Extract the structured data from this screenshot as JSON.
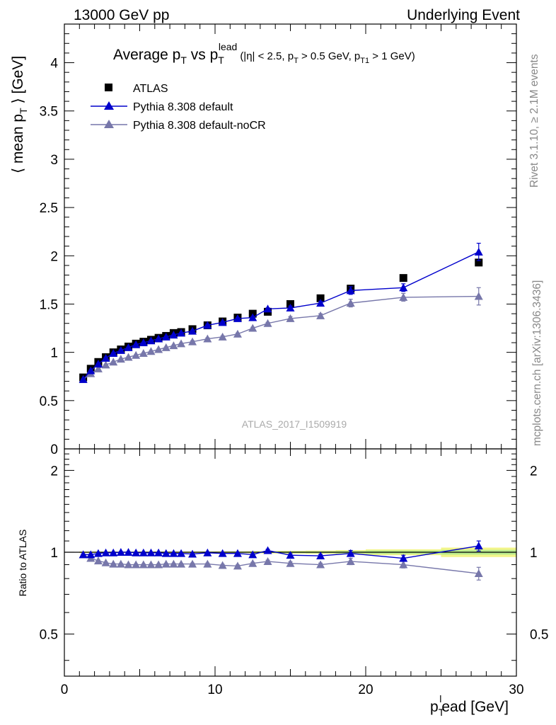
{
  "header": {
    "left": "13000 GeV pp",
    "right": "Underlying Event"
  },
  "side": {
    "rivet": "Rivet 3.1.10, ≥ 2.1M events",
    "mcplots": "mcplots.cern.ch [arXiv:1306.3436]"
  },
  "title": {
    "main": "Average p",
    "main_sub": "T",
    "vs": " vs p",
    "vs_sub": "T",
    "vs_sup": "lead",
    "cuts_a": "(|η| < 2.5, p",
    "cuts_a_sub": "T",
    "cuts_b": " > 0.5 GeV, p",
    "cuts_b_sub": "T1",
    "cuts_c": " > 1 GeV)"
  },
  "watermark": "ATLAS_2017_I1509919",
  "ylabel_main": {
    "a": "⟨ mean p",
    "sub": "T",
    "b": " ⟩ [GeV]"
  },
  "ylabel_ratio": "Ratio to ATLAS",
  "xlabel": {
    "p": "p",
    "sub": "T",
    "sup": "l",
    "rest": "ead [GeV]"
  },
  "legend": [
    {
      "name": "ATLAS",
      "color": "#000000",
      "marker": "square"
    },
    {
      "name": "Pythia 8.308 default",
      "color": "#0000cc",
      "marker": "triangle"
    },
    {
      "name": "Pythia 8.308 default-noCR",
      "color": "#7777aa",
      "marker": "triangle"
    }
  ],
  "colors": {
    "data": "#000000",
    "default": "#0000cc",
    "nocr": "#7777aa",
    "band_yellow": "#f2f58a",
    "band_green": "#b9ec8e"
  },
  "chart_data": {
    "type": "scatter",
    "xlabel": "p_T^lead [GeV]",
    "ylabel": "⟨ mean p_T ⟩ [GeV]",
    "xlim": [
      0,
      30
    ],
    "ylim_main": [
      0,
      4.4
    ],
    "ylim_ratio_log": [
      0.35,
      2.4
    ],
    "x_ticks": [
      "0",
      "10",
      "20",
      "30"
    ],
    "y_ticks_main": [
      "0",
      "0.5",
      "1",
      "1.5",
      "2",
      "2.5",
      "3",
      "3.5",
      "4"
    ],
    "y_ticks_ratio": [
      "0.5",
      "1",
      "2"
    ],
    "x": [
      1.25,
      1.75,
      2.25,
      2.75,
      3.25,
      3.75,
      4.25,
      4.75,
      5.25,
      5.75,
      6.25,
      6.75,
      7.25,
      7.75,
      8.5,
      9.5,
      10.5,
      11.5,
      12.5,
      13.5,
      15.0,
      17.0,
      19.0,
      22.5,
      27.5
    ],
    "series": [
      {
        "name": "ATLAS",
        "values": [
          0.74,
          0.83,
          0.9,
          0.95,
          1.0,
          1.03,
          1.06,
          1.09,
          1.11,
          1.13,
          1.15,
          1.17,
          1.2,
          1.21,
          1.24,
          1.28,
          1.32,
          1.36,
          1.4,
          1.42,
          1.5,
          1.56,
          1.66,
          1.77,
          1.93
        ]
      },
      {
        "name": "Pythia 8.308 default",
        "values": [
          0.72,
          0.81,
          0.88,
          0.94,
          0.99,
          1.02,
          1.05,
          1.08,
          1.1,
          1.12,
          1.14,
          1.16,
          1.18,
          1.2,
          1.22,
          1.28,
          1.31,
          1.35,
          1.36,
          1.45,
          1.46,
          1.51,
          1.64,
          1.67,
          2.04
        ],
        "errors": [
          0.005,
          0.005,
          0.005,
          0.005,
          0.005,
          0.005,
          0.005,
          0.005,
          0.005,
          0.005,
          0.005,
          0.005,
          0.005,
          0.005,
          0.01,
          0.01,
          0.01,
          0.01,
          0.01,
          0.01,
          0.02,
          0.02,
          0.04,
          0.04,
          0.09
        ]
      },
      {
        "name": "Pythia 8.308 default-noCR",
        "values": [
          0.72,
          0.78,
          0.83,
          0.87,
          0.9,
          0.93,
          0.95,
          0.97,
          0.99,
          1.01,
          1.03,
          1.05,
          1.07,
          1.09,
          1.11,
          1.14,
          1.16,
          1.19,
          1.25,
          1.3,
          1.35,
          1.38,
          1.51,
          1.57,
          1.58
        ],
        "errors": [
          0.005,
          0.005,
          0.005,
          0.005,
          0.005,
          0.005,
          0.005,
          0.005,
          0.005,
          0.005,
          0.005,
          0.005,
          0.005,
          0.005,
          0.01,
          0.01,
          0.01,
          0.01,
          0.01,
          0.01,
          0.02,
          0.02,
          0.04,
          0.04,
          0.09
        ]
      }
    ],
    "ratio_series": [
      {
        "name": "Pythia 8.308 default",
        "values": [
          0.98,
          0.98,
          0.99,
          0.995,
          0.995,
          1.0,
          1.0,
          0.995,
          0.995,
          0.995,
          0.995,
          0.99,
          0.99,
          0.99,
          0.985,
          0.995,
          0.99,
          0.99,
          0.98,
          1.015,
          0.975,
          0.97,
          0.99,
          0.95,
          1.055
        ],
        "errors": [
          0.005,
          0.005,
          0.005,
          0.005,
          0.005,
          0.005,
          0.005,
          0.005,
          0.005,
          0.005,
          0.005,
          0.005,
          0.005,
          0.005,
          0.007,
          0.007,
          0.007,
          0.008,
          0.008,
          0.01,
          0.012,
          0.012,
          0.025,
          0.025,
          0.045
        ]
      },
      {
        "name": "Pythia 8.308 default-noCR",
        "values": [
          0.98,
          0.95,
          0.93,
          0.915,
          0.905,
          0.905,
          0.9,
          0.9,
          0.9,
          0.9,
          0.9,
          0.905,
          0.905,
          0.905,
          0.905,
          0.905,
          0.895,
          0.89,
          0.91,
          0.925,
          0.91,
          0.9,
          0.925,
          0.9,
          0.835
        ],
        "errors": [
          0.005,
          0.005,
          0.005,
          0.005,
          0.005,
          0.005,
          0.005,
          0.005,
          0.005,
          0.005,
          0.005,
          0.005,
          0.005,
          0.005,
          0.007,
          0.007,
          0.007,
          0.008,
          0.008,
          0.01,
          0.012,
          0.012,
          0.025,
          0.025,
          0.045
        ]
      }
    ],
    "data_band": {
      "x_edges": [
        1.0,
        1.5,
        2.0,
        2.5,
        3.0,
        3.5,
        4.0,
        4.5,
        5.0,
        5.5,
        6.0,
        6.5,
        7.0,
        7.5,
        8.0,
        9.0,
        10.0,
        11.0,
        12.0,
        13.0,
        14.0,
        16.0,
        18.0,
        20.0,
        25.0,
        30.0
      ],
      "stat_rel": [
        0.003,
        0.003,
        0.003,
        0.003,
        0.003,
        0.003,
        0.003,
        0.003,
        0.003,
        0.003,
        0.003,
        0.003,
        0.003,
        0.003,
        0.004,
        0.004,
        0.004,
        0.005,
        0.005,
        0.006,
        0.007,
        0.008,
        0.01,
        0.015,
        0.02
      ],
      "total_rel": [
        0.006,
        0.006,
        0.006,
        0.006,
        0.006,
        0.006,
        0.006,
        0.006,
        0.006,
        0.006,
        0.006,
        0.006,
        0.006,
        0.006,
        0.007,
        0.007,
        0.008,
        0.008,
        0.009,
        0.01,
        0.012,
        0.014,
        0.018,
        0.025,
        0.04
      ]
    }
  }
}
